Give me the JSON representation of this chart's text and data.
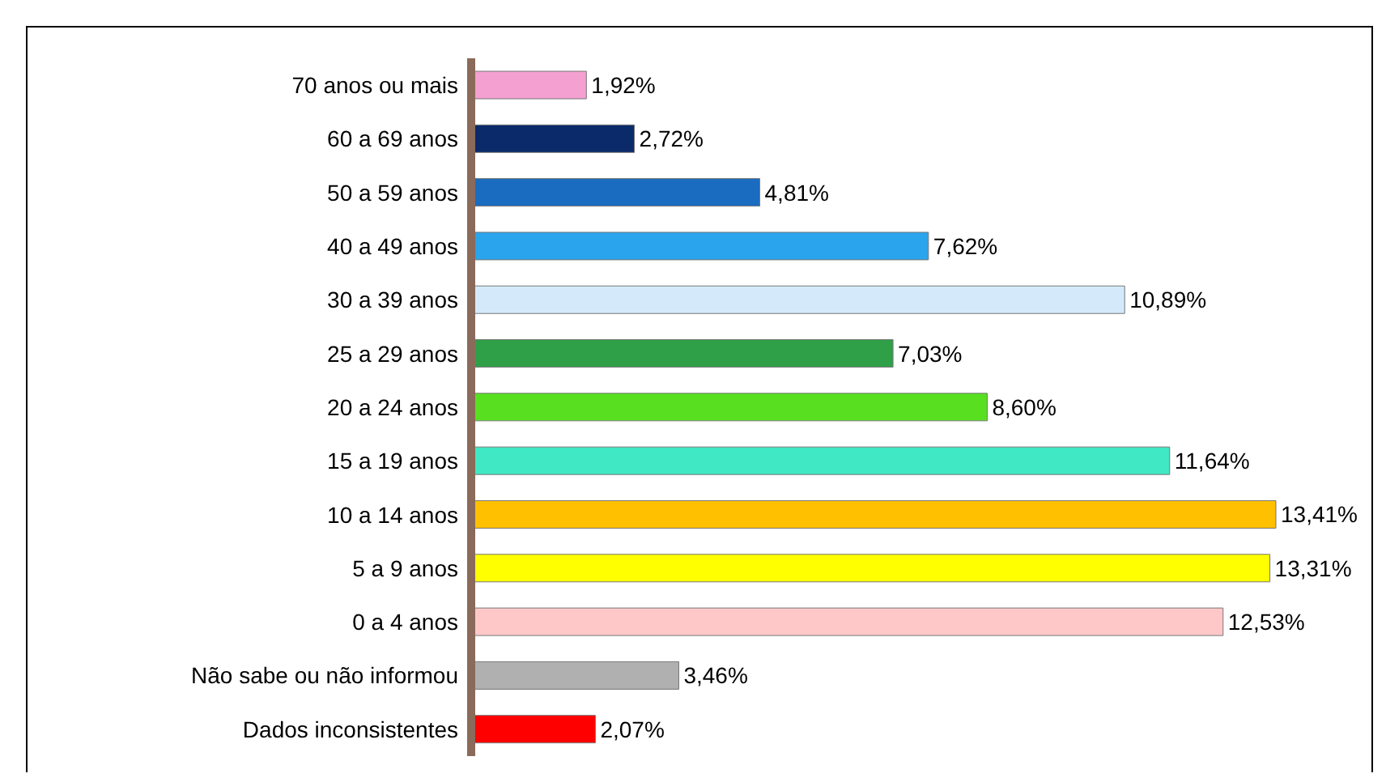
{
  "chart_data": {
    "type": "bar",
    "orientation": "horizontal",
    "data_labels": true,
    "categories": [
      "70 anos ou mais",
      "60 a 69 anos",
      "50 a 59 anos",
      "40 a 49 anos",
      "30 a 39 anos",
      "25 a 29 anos",
      "20 a 24 anos",
      "15 a 19 anos",
      "10 a 14 anos",
      "5 a 9 anos",
      "0 a 4 anos",
      "Não sabe ou não informou",
      "Dados inconsistentes"
    ],
    "values": [
      1.92,
      2.72,
      4.81,
      7.62,
      10.89,
      7.03,
      8.6,
      11.64,
      13.41,
      13.31,
      12.53,
      3.46,
      2.07
    ],
    "colors": [
      "#f4a0d0",
      "#0a2a6a",
      "#1a6cc0",
      "#2aa4ec",
      "#d4eafa",
      "#30a048",
      "#58e020",
      "#40e8c4",
      "#ffc000",
      "#ffff00",
      "#ffc8c8",
      "#b0b0b0",
      "#ff0000"
    ],
    "value_labels": [
      "1,92%",
      "2,72%",
      "4,81%",
      "7,62%",
      "10,89%",
      "7,03%",
      "8,60%",
      "11,64%",
      "13,41%",
      "13,31%",
      "12,53%",
      "3,46%",
      "2,07%"
    ]
  }
}
